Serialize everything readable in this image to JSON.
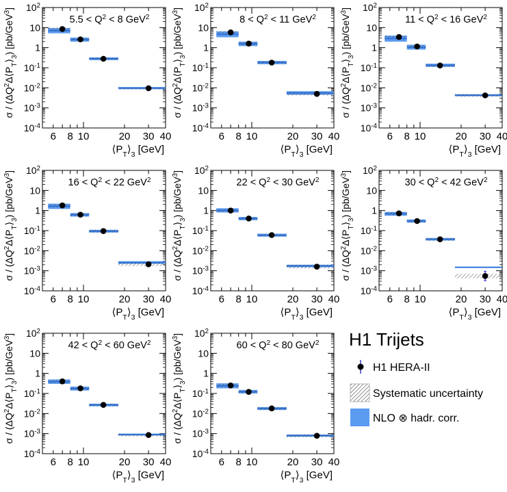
{
  "legend": {
    "title": "H1 Trijets",
    "data_label": "H1 HERA-II",
    "syst_label": "Systematic uncertainty",
    "nlo_label": "NLO ⊗ hadr. corr."
  },
  "colors": {
    "nlo_band": "#5b9bf0",
    "nlo_line": "#2f6fd6",
    "marker": "#000000",
    "errbar": "#2b2bd0"
  },
  "chart_data": [
    {
      "type": "scatter",
      "title": "5.5 < Q² < 8 GeV²",
      "xlabel": "⟨P_T⟩_3 [GeV]",
      "ylabel": "σ / (ΔQ²Δ⟨P_T⟩_3) [pb/GeV³]",
      "x_scale": "log",
      "y_scale": "log",
      "xlim": [
        5,
        40
      ],
      "ylim": [
        0.0001,
        100
      ],
      "x_ticks": [
        6,
        8,
        10,
        20,
        30,
        40
      ],
      "y_ticks": [
        "10⁻⁴",
        "10⁻³",
        "10⁻²",
        "10⁻¹",
        "1",
        "10",
        "10²"
      ],
      "bins": [
        [
          5.5,
          8
        ],
        [
          8,
          11
        ],
        [
          11,
          18
        ],
        [
          18,
          40
        ]
      ],
      "x": [
        7,
        9.5,
        14,
        30
      ],
      "data": [
        8.5,
        2.6,
        0.28,
        0.0095
      ],
      "nlo": [
        [
          5.2,
          9.5
        ],
        [
          2.0,
          3.2
        ],
        [
          0.24,
          0.33
        ],
        [
          0.0085,
          0.011
        ]
      ],
      "syst": [
        [
          6.5,
          10
        ],
        [
          2.2,
          3.0
        ],
        [
          0.25,
          0.32
        ],
        [
          0.0085,
          0.0105
        ]
      ]
    },
    {
      "type": "scatter",
      "title": "8 < Q² < 11 GeV²",
      "xlabel": "⟨P_T⟩_3 [GeV]",
      "ylabel": "σ / (ΔQ²Δ⟨P_T⟩_3) [pb/GeV³]",
      "x_scale": "log",
      "y_scale": "log",
      "xlim": [
        5,
        40
      ],
      "ylim": [
        0.0001,
        100
      ],
      "x_ticks": [
        6,
        8,
        10,
        20,
        30,
        40
      ],
      "y_ticks": [
        "10⁻⁴",
        "10⁻³",
        "10⁻²",
        "10⁻¹",
        "1",
        "10",
        "10²"
      ],
      "bins": [
        [
          5.5,
          8
        ],
        [
          8,
          11
        ],
        [
          11,
          18
        ],
        [
          18,
          40
        ]
      ],
      "x": [
        7,
        9.5,
        14,
        30
      ],
      "data": [
        5.8,
        1.6,
        0.18,
        0.005
      ],
      "nlo": [
        [
          3.3,
          6.5
        ],
        [
          1.2,
          2.0
        ],
        [
          0.15,
          0.22
        ],
        [
          0.0045,
          0.0068
        ]
      ],
      "syst": [
        [
          5.0,
          6.7
        ],
        [
          1.3,
          1.9
        ],
        [
          0.16,
          0.21
        ],
        [
          0.0042,
          0.006
        ]
      ]
    },
    {
      "type": "scatter",
      "title": "11 < Q² < 16 GeV²",
      "xlabel": "⟨P_T⟩_3 [GeV]",
      "ylabel": "σ / (ΔQ²Δ⟨P_T⟩_3) [pb/GeV³]",
      "x_scale": "log",
      "y_scale": "log",
      "xlim": [
        5,
        40
      ],
      "ylim": [
        0.0001,
        100
      ],
      "x_ticks": [
        6,
        8,
        10,
        20,
        30,
        40
      ],
      "y_ticks": [
        "10⁻⁴",
        "10⁻³",
        "10⁻²",
        "10⁻¹",
        "1",
        "10",
        "10²"
      ],
      "bins": [
        [
          5.5,
          8
        ],
        [
          8,
          11
        ],
        [
          11,
          18
        ],
        [
          18,
          40
        ]
      ],
      "x": [
        7,
        9.5,
        14,
        30
      ],
      "data": [
        3.4,
        1.15,
        0.13,
        0.0042
      ],
      "nlo": [
        [
          2.0,
          4.0
        ],
        [
          0.8,
          1.4
        ],
        [
          0.11,
          0.16
        ],
        [
          0.0038,
          0.0048
        ]
      ],
      "syst": [
        [
          2.9,
          4.0
        ],
        [
          0.95,
          1.35
        ],
        [
          0.11,
          0.15
        ],
        [
          0.0036,
          0.0049
        ]
      ]
    },
    {
      "type": "scatter",
      "title": "16 < Q² < 22 GeV²",
      "xlabel": "⟨P_T⟩_3 [GeV]",
      "ylabel": "σ / (ΔQ²Δ⟨P_T⟩_3) [pb/GeV³]",
      "x_scale": "log",
      "y_scale": "log",
      "xlim": [
        5,
        40
      ],
      "ylim": [
        0.0001,
        100
      ],
      "x_ticks": [
        6,
        8,
        10,
        20,
        30,
        40
      ],
      "y_ticks": [
        "10⁻⁴",
        "10⁻³",
        "10⁻²",
        "10⁻¹",
        "1",
        "10",
        "10²"
      ],
      "bins": [
        [
          5.5,
          8
        ],
        [
          8,
          11
        ],
        [
          11,
          18
        ],
        [
          18,
          40
        ]
      ],
      "x": [
        7,
        9.5,
        14,
        30
      ],
      "data": [
        1.8,
        0.62,
        0.095,
        0.0021
      ],
      "nlo": [
        [
          1.2,
          2.2
        ],
        [
          0.5,
          0.75
        ],
        [
          0.08,
          0.11
        ],
        [
          0.0022,
          0.003
        ]
      ],
      "syst": [
        [
          1.5,
          2.1
        ],
        [
          0.52,
          0.72
        ],
        [
          0.08,
          0.11
        ],
        [
          0.0017,
          0.0026
        ]
      ]
    },
    {
      "type": "scatter",
      "title": "22 < Q² < 30 GeV²",
      "xlabel": "⟨P_T⟩_3 [GeV]",
      "ylabel": "σ / (ΔQ²Δ⟨P_T⟩_3) [pb/GeV³]",
      "x_scale": "log",
      "y_scale": "log",
      "xlim": [
        5,
        40
      ],
      "ylim": [
        0.0001,
        100
      ],
      "x_ticks": [
        6,
        8,
        10,
        20,
        30,
        40
      ],
      "y_ticks": [
        "10⁻⁴",
        "10⁻³",
        "10⁻²",
        "10⁻¹",
        "1",
        "10",
        "10²"
      ],
      "bins": [
        [
          5.5,
          8
        ],
        [
          8,
          11
        ],
        [
          11,
          18
        ],
        [
          18,
          40
        ]
      ],
      "x": [
        7,
        9.5,
        14,
        30
      ],
      "data": [
        1.0,
        0.4,
        0.06,
        0.0016
      ],
      "nlo": [
        [
          0.8,
          1.3
        ],
        [
          0.33,
          0.48
        ],
        [
          0.05,
          0.07
        ],
        [
          0.0015,
          0.002
        ]
      ],
      "syst": [
        [
          0.85,
          1.15
        ],
        [
          0.34,
          0.46
        ],
        [
          0.052,
          0.069
        ],
        [
          0.0013,
          0.002
        ]
      ]
    },
    {
      "type": "scatter",
      "title": "30 < Q² < 42 GeV²",
      "xlabel": "⟨P_T⟩_3 [GeV]",
      "ylabel": "σ / (ΔQ²Δ⟨P_T⟩_3) [pb/GeV³]",
      "x_scale": "log",
      "y_scale": "log",
      "xlim": [
        5,
        40
      ],
      "ylim": [
        0.0001,
        100
      ],
      "x_ticks": [
        6,
        8,
        10,
        20,
        30,
        40
      ],
      "y_ticks": [
        "10⁻⁴",
        "10⁻³",
        "10⁻²",
        "10⁻¹",
        "1",
        "10",
        "10²"
      ],
      "bins": [
        [
          5.5,
          8
        ],
        [
          8,
          11
        ],
        [
          11,
          18
        ],
        [
          18,
          40
        ]
      ],
      "x": [
        7,
        9.5,
        14,
        30
      ],
      "data": [
        0.72,
        0.3,
        0.037,
        0.00055
      ],
      "nlo": [
        [
          0.55,
          0.85
        ],
        [
          0.25,
          0.36
        ],
        [
          0.032,
          0.043
        ],
        [
          0.0014,
          0.0016
        ]
      ],
      "syst": [
        [
          0.6,
          0.85
        ],
        [
          0.25,
          0.35
        ],
        [
          0.031,
          0.043
        ],
        [
          0.00042,
          0.0007
        ]
      ],
      "stat_err": [
        null,
        null,
        null,
        [
          0.00032,
          0.00095
        ]
      ]
    },
    {
      "type": "scatter",
      "title": "42 < Q² < 60 GeV²",
      "xlabel": "⟨P_T⟩_3 [GeV]",
      "ylabel": "σ / (ΔQ²Δ⟨P_T⟩_3) [pb/GeV³]",
      "x_scale": "log",
      "y_scale": "log",
      "xlim": [
        5,
        40
      ],
      "ylim": [
        0.0001,
        100
      ],
      "x_ticks": [
        6,
        8,
        10,
        20,
        30,
        40
      ],
      "y_ticks": [
        "10⁻⁴",
        "10⁻³",
        "10⁻²",
        "10⁻¹",
        "1",
        "10",
        "10²"
      ],
      "bins": [
        [
          5.5,
          8
        ],
        [
          8,
          11
        ],
        [
          11,
          18
        ],
        [
          18,
          40
        ]
      ],
      "x": [
        7,
        9.5,
        14,
        30
      ],
      "data": [
        0.4,
        0.18,
        0.027,
        0.00085
      ],
      "nlo": [
        [
          0.3,
          0.5
        ],
        [
          0.14,
          0.22
        ],
        [
          0.023,
          0.031
        ],
        [
          0.0008,
          0.001
        ]
      ],
      "syst": [
        [
          0.33,
          0.47
        ],
        [
          0.15,
          0.21
        ],
        [
          0.023,
          0.031
        ],
        [
          0.00072,
          0.00098
        ]
      ]
    },
    {
      "type": "scatter",
      "title": "60 < Q² < 80 GeV²",
      "xlabel": "⟨P_T⟩_3 [GeV]",
      "ylabel": "σ / (ΔQ²Δ⟨P_T⟩_3) [pb/GeV³]",
      "x_scale": "log",
      "y_scale": "log",
      "xlim": [
        5,
        40
      ],
      "ylim": [
        0.0001,
        100
      ],
      "x_ticks": [
        6,
        8,
        10,
        20,
        30,
        40
      ],
      "y_ticks": [
        "10⁻⁴",
        "10⁻³",
        "10⁻²",
        "10⁻¹",
        "1",
        "10",
        "10²"
      ],
      "bins": [
        [
          5.5,
          8
        ],
        [
          8,
          11
        ],
        [
          11,
          18
        ],
        [
          18,
          40
        ]
      ],
      "x": [
        7,
        9.5,
        14,
        30
      ],
      "data": [
        0.25,
        0.12,
        0.018,
        0.00078
      ],
      "nlo": [
        [
          0.18,
          0.32
        ],
        [
          0.1,
          0.15
        ],
        [
          0.015,
          0.021
        ],
        [
          0.0007,
          0.0009
        ]
      ],
      "syst": [
        [
          0.21,
          0.3
        ],
        [
          0.1,
          0.14
        ],
        [
          0.015,
          0.021
        ],
        [
          0.00065,
          0.00092
        ]
      ]
    }
  ]
}
